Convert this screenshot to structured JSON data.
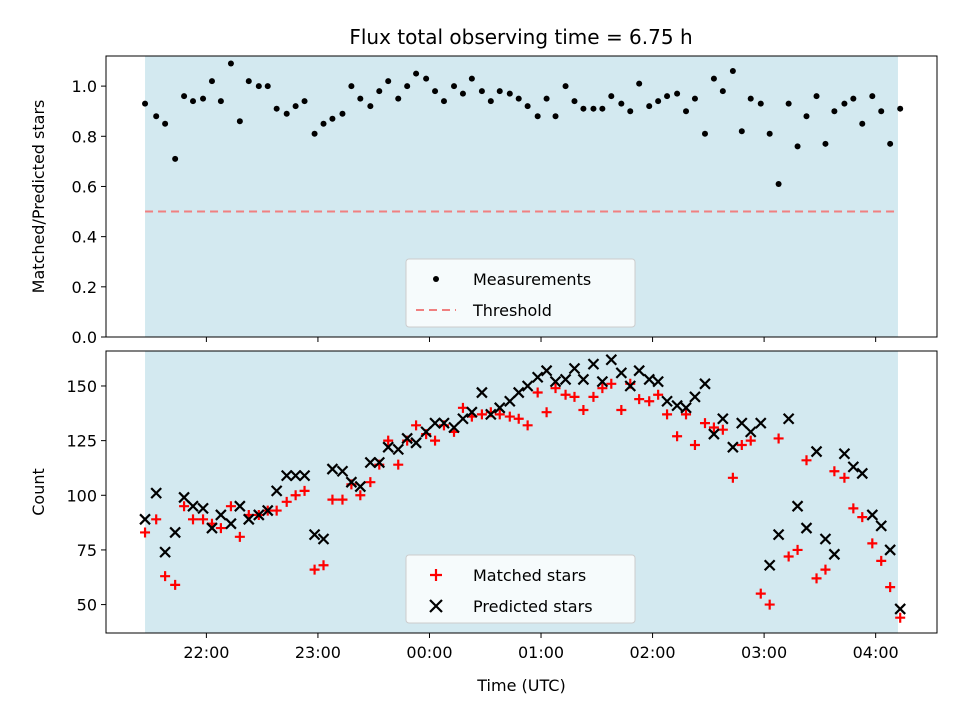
{
  "title": "Flux total observing time = 6.75 h",
  "colors": {
    "shade": "#d3e9f0",
    "threshold": "#f08080",
    "matched": "#ff0000",
    "predicted": "#000000",
    "measurement": "#000000"
  },
  "chart_data": [
    {
      "type": "scatter",
      "ylabel": "Matched/Predicted stars",
      "xlim": [
        21.1,
        4.55
      ],
      "ylim": [
        0,
        1.12
      ],
      "yticks": [
        0.0,
        0.2,
        0.4,
        0.6,
        0.8,
        1.0
      ],
      "ytick_labels": [
        "0.0",
        "0.2",
        "0.4",
        "0.6",
        "0.8",
        "1.0"
      ],
      "observing_window": [
        21.45,
        4.2
      ],
      "threshold": 0.5,
      "legend": {
        "position": "lower center",
        "entries": [
          "Measurements",
          "Threshold"
        ]
      },
      "series": [
        {
          "name": "Measurements",
          "marker": "dot",
          "x": [
            21.45,
            21.55,
            21.63,
            21.72,
            21.8,
            21.88,
            21.97,
            22.05,
            22.13,
            22.22,
            22.3,
            22.38,
            22.47,
            22.55,
            22.63,
            22.72,
            22.8,
            22.88,
            22.97,
            23.05,
            23.13,
            23.22,
            23.3,
            23.38,
            23.47,
            23.55,
            23.63,
            23.72,
            23.8,
            23.88,
            23.97,
            24.05,
            24.13,
            24.22,
            24.3,
            24.38,
            24.47,
            24.55,
            24.63,
            24.72,
            24.8,
            24.88,
            24.97,
            25.05,
            25.13,
            25.22,
            25.3,
            25.38,
            25.47,
            25.55,
            25.63,
            25.72,
            25.8,
            25.88,
            25.97,
            26.05,
            26.13,
            26.22,
            26.3,
            26.38,
            26.47,
            26.55,
            26.63,
            26.72,
            26.8,
            26.88,
            26.97,
            27.05,
            27.13,
            27.22,
            27.3,
            27.38,
            27.47,
            27.55,
            27.63,
            27.72,
            27.8,
            27.88,
            27.97,
            28.05,
            28.13,
            28.22
          ],
          "y": [
            0.93,
            0.88,
            0.85,
            0.71,
            0.96,
            0.94,
            0.95,
            1.02,
            0.94,
            1.09,
            0.86,
            1.02,
            1.0,
            1.0,
            0.91,
            0.89,
            0.92,
            0.94,
            0.81,
            0.85,
            0.87,
            0.89,
            1.0,
            0.95,
            0.92,
            0.98,
            1.02,
            0.95,
            1.0,
            1.05,
            1.03,
            0.98,
            0.94,
            1.0,
            0.97,
            1.03,
            0.98,
            0.94,
            0.98,
            0.97,
            0.95,
            0.92,
            0.88,
            0.95,
            0.88,
            1.0,
            0.94,
            0.91,
            0.91,
            0.91,
            0.96,
            0.93,
            0.9,
            1.01,
            0.92,
            0.94,
            0.96,
            0.97,
            0.9,
            0.95,
            0.81,
            1.03,
            0.98,
            1.06,
            0.82,
            0.95,
            0.93,
            0.81,
            0.61,
            0.93,
            0.76,
            0.88,
            0.96,
            0.77,
            0.9,
            0.93,
            0.95,
            0.85,
            0.96,
            0.9,
            0.77,
            0.91
          ]
        }
      ]
    },
    {
      "type": "scatter",
      "ylabel": "Count",
      "xlabel": "Time (UTC)",
      "xlim": [
        21.1,
        4.55
      ],
      "ylim": [
        37,
        166
      ],
      "yticks": [
        50,
        75,
        100,
        125,
        150
      ],
      "ytick_labels": [
        "50",
        "75",
        "100",
        "125",
        "150"
      ],
      "xtick_labels": [
        "22:00",
        "23:00",
        "00:00",
        "01:00",
        "02:00",
        "03:00",
        "04:00"
      ],
      "observing_window": [
        21.45,
        4.2
      ],
      "legend": {
        "position": "lower center",
        "entries": [
          "Matched stars",
          "Predicted stars"
        ]
      },
      "series": [
        {
          "name": "Matched stars",
          "marker": "plus",
          "x": [
            21.45,
            21.55,
            21.63,
            21.72,
            21.8,
            21.88,
            21.97,
            22.05,
            22.13,
            22.22,
            22.3,
            22.38,
            22.47,
            22.55,
            22.63,
            22.72,
            22.8,
            22.88,
            22.97,
            23.05,
            23.13,
            23.22,
            23.3,
            23.38,
            23.47,
            23.55,
            23.63,
            23.72,
            23.8,
            23.88,
            23.97,
            24.05,
            24.13,
            24.22,
            24.3,
            24.38,
            24.47,
            24.55,
            24.63,
            24.72,
            24.8,
            24.88,
            24.97,
            25.05,
            25.13,
            25.22,
            25.3,
            25.38,
            25.47,
            25.55,
            25.63,
            25.72,
            25.8,
            25.88,
            25.97,
            26.05,
            26.13,
            26.22,
            26.3,
            26.38,
            26.47,
            26.55,
            26.63,
            26.72,
            26.8,
            26.88,
            26.97,
            27.05,
            27.13,
            27.22,
            27.3,
            27.38,
            27.47,
            27.55,
            27.63,
            27.72,
            27.8,
            27.88,
            27.97,
            28.05,
            28.13,
            28.22
          ],
          "y": [
            83,
            89,
            63,
            59,
            95,
            89,
            89,
            87,
            85,
            95,
            81,
            91,
            91,
            93,
            93,
            97,
            100,
            102,
            66,
            68,
            98,
            98,
            105,
            100,
            106,
            114,
            125,
            114,
            125,
            132,
            128,
            125,
            132,
            129,
            140,
            136,
            137,
            138,
            137,
            136,
            135,
            132,
            147,
            138,
            149,
            146,
            145,
            139,
            145,
            149,
            151,
            139,
            151,
            144,
            143,
            146,
            137,
            127,
            137,
            123,
            133,
            131,
            130,
            108,
            123,
            125,
            55,
            50,
            126,
            72,
            75,
            116,
            62,
            66,
            111,
            108,
            94,
            90,
            78,
            70,
            58,
            44
          ]
        },
        {
          "name": "Predicted stars",
          "marker": "x",
          "x": [
            21.45,
            21.55,
            21.63,
            21.72,
            21.8,
            21.88,
            21.97,
            22.05,
            22.13,
            22.22,
            22.3,
            22.38,
            22.47,
            22.55,
            22.63,
            22.72,
            22.8,
            22.88,
            22.97,
            23.05,
            23.13,
            23.22,
            23.3,
            23.38,
            23.47,
            23.55,
            23.63,
            23.72,
            23.8,
            23.88,
            23.97,
            24.05,
            24.13,
            24.22,
            24.3,
            24.38,
            24.47,
            24.55,
            24.63,
            24.72,
            24.8,
            24.88,
            24.97,
            25.05,
            25.13,
            25.22,
            25.3,
            25.38,
            25.47,
            25.55,
            25.63,
            25.72,
            25.8,
            25.88,
            25.97,
            26.05,
            26.13,
            26.22,
            26.3,
            26.38,
            26.47,
            26.55,
            26.63,
            26.72,
            26.8,
            26.88,
            26.97,
            27.05,
            27.13,
            27.22,
            27.3,
            27.38,
            27.47,
            27.55,
            27.63,
            27.72,
            27.8,
            27.88,
            27.97,
            28.05,
            28.13,
            28.22
          ],
          "y": [
            89,
            101,
            74,
            83,
            99,
            95,
            94,
            85,
            91,
            87,
            95,
            89,
            91,
            93,
            102,
            109,
            109,
            109,
            82,
            80,
            112,
            111,
            106,
            104,
            115,
            115,
            122,
            121,
            126,
            124,
            129,
            133,
            133,
            131,
            135,
            138,
            147,
            137,
            140,
            143,
            147,
            150,
            154,
            157,
            152,
            153,
            158,
            153,
            160,
            152,
            162,
            156,
            150,
            157,
            153,
            152,
            143,
            141,
            140,
            145,
            151,
            128,
            135,
            122,
            133,
            129,
            133,
            68,
            82,
            135,
            95,
            85,
            120,
            80,
            73,
            119,
            113,
            110,
            91,
            86,
            75,
            48
          ]
        }
      ]
    }
  ]
}
